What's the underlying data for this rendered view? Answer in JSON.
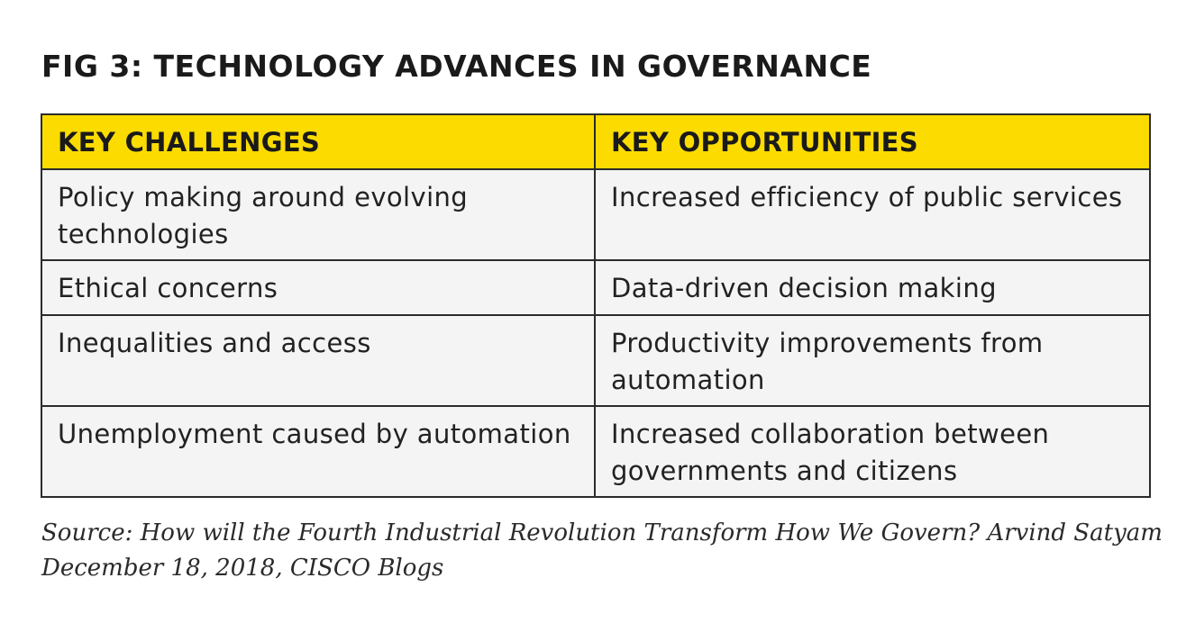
{
  "figure": {
    "title": "FIG 3: TECHNOLOGY ADVANCES IN GOVERNANCE"
  },
  "table": {
    "headers": [
      "KEY CHALLENGES",
      "KEY OPPORTUNITIES"
    ],
    "rows": [
      {
        "challenge": "Policy making around evolving technologies",
        "opportunity": "Increased efficiency of public services"
      },
      {
        "challenge": "Ethical concerns",
        "opportunity": "Data-driven decision making"
      },
      {
        "challenge": "Inequalities and access",
        "opportunity": "Productivity improvements from automation"
      },
      {
        "challenge": "Unemployment caused by automation",
        "opportunity": "Increased collaboration between governments and citizens"
      }
    ]
  },
  "source": {
    "line1": "Source: How will the Fourth Industrial Revolution Transform How We Govern? Arvind Satyam",
    "line2": "December 18, 2018, CISCO Blogs"
  },
  "colors": {
    "header_background": "#fcdc00",
    "cell_background": "#f4f4f4",
    "border": "#2b2b2b",
    "text": "#1a1a1a"
  }
}
